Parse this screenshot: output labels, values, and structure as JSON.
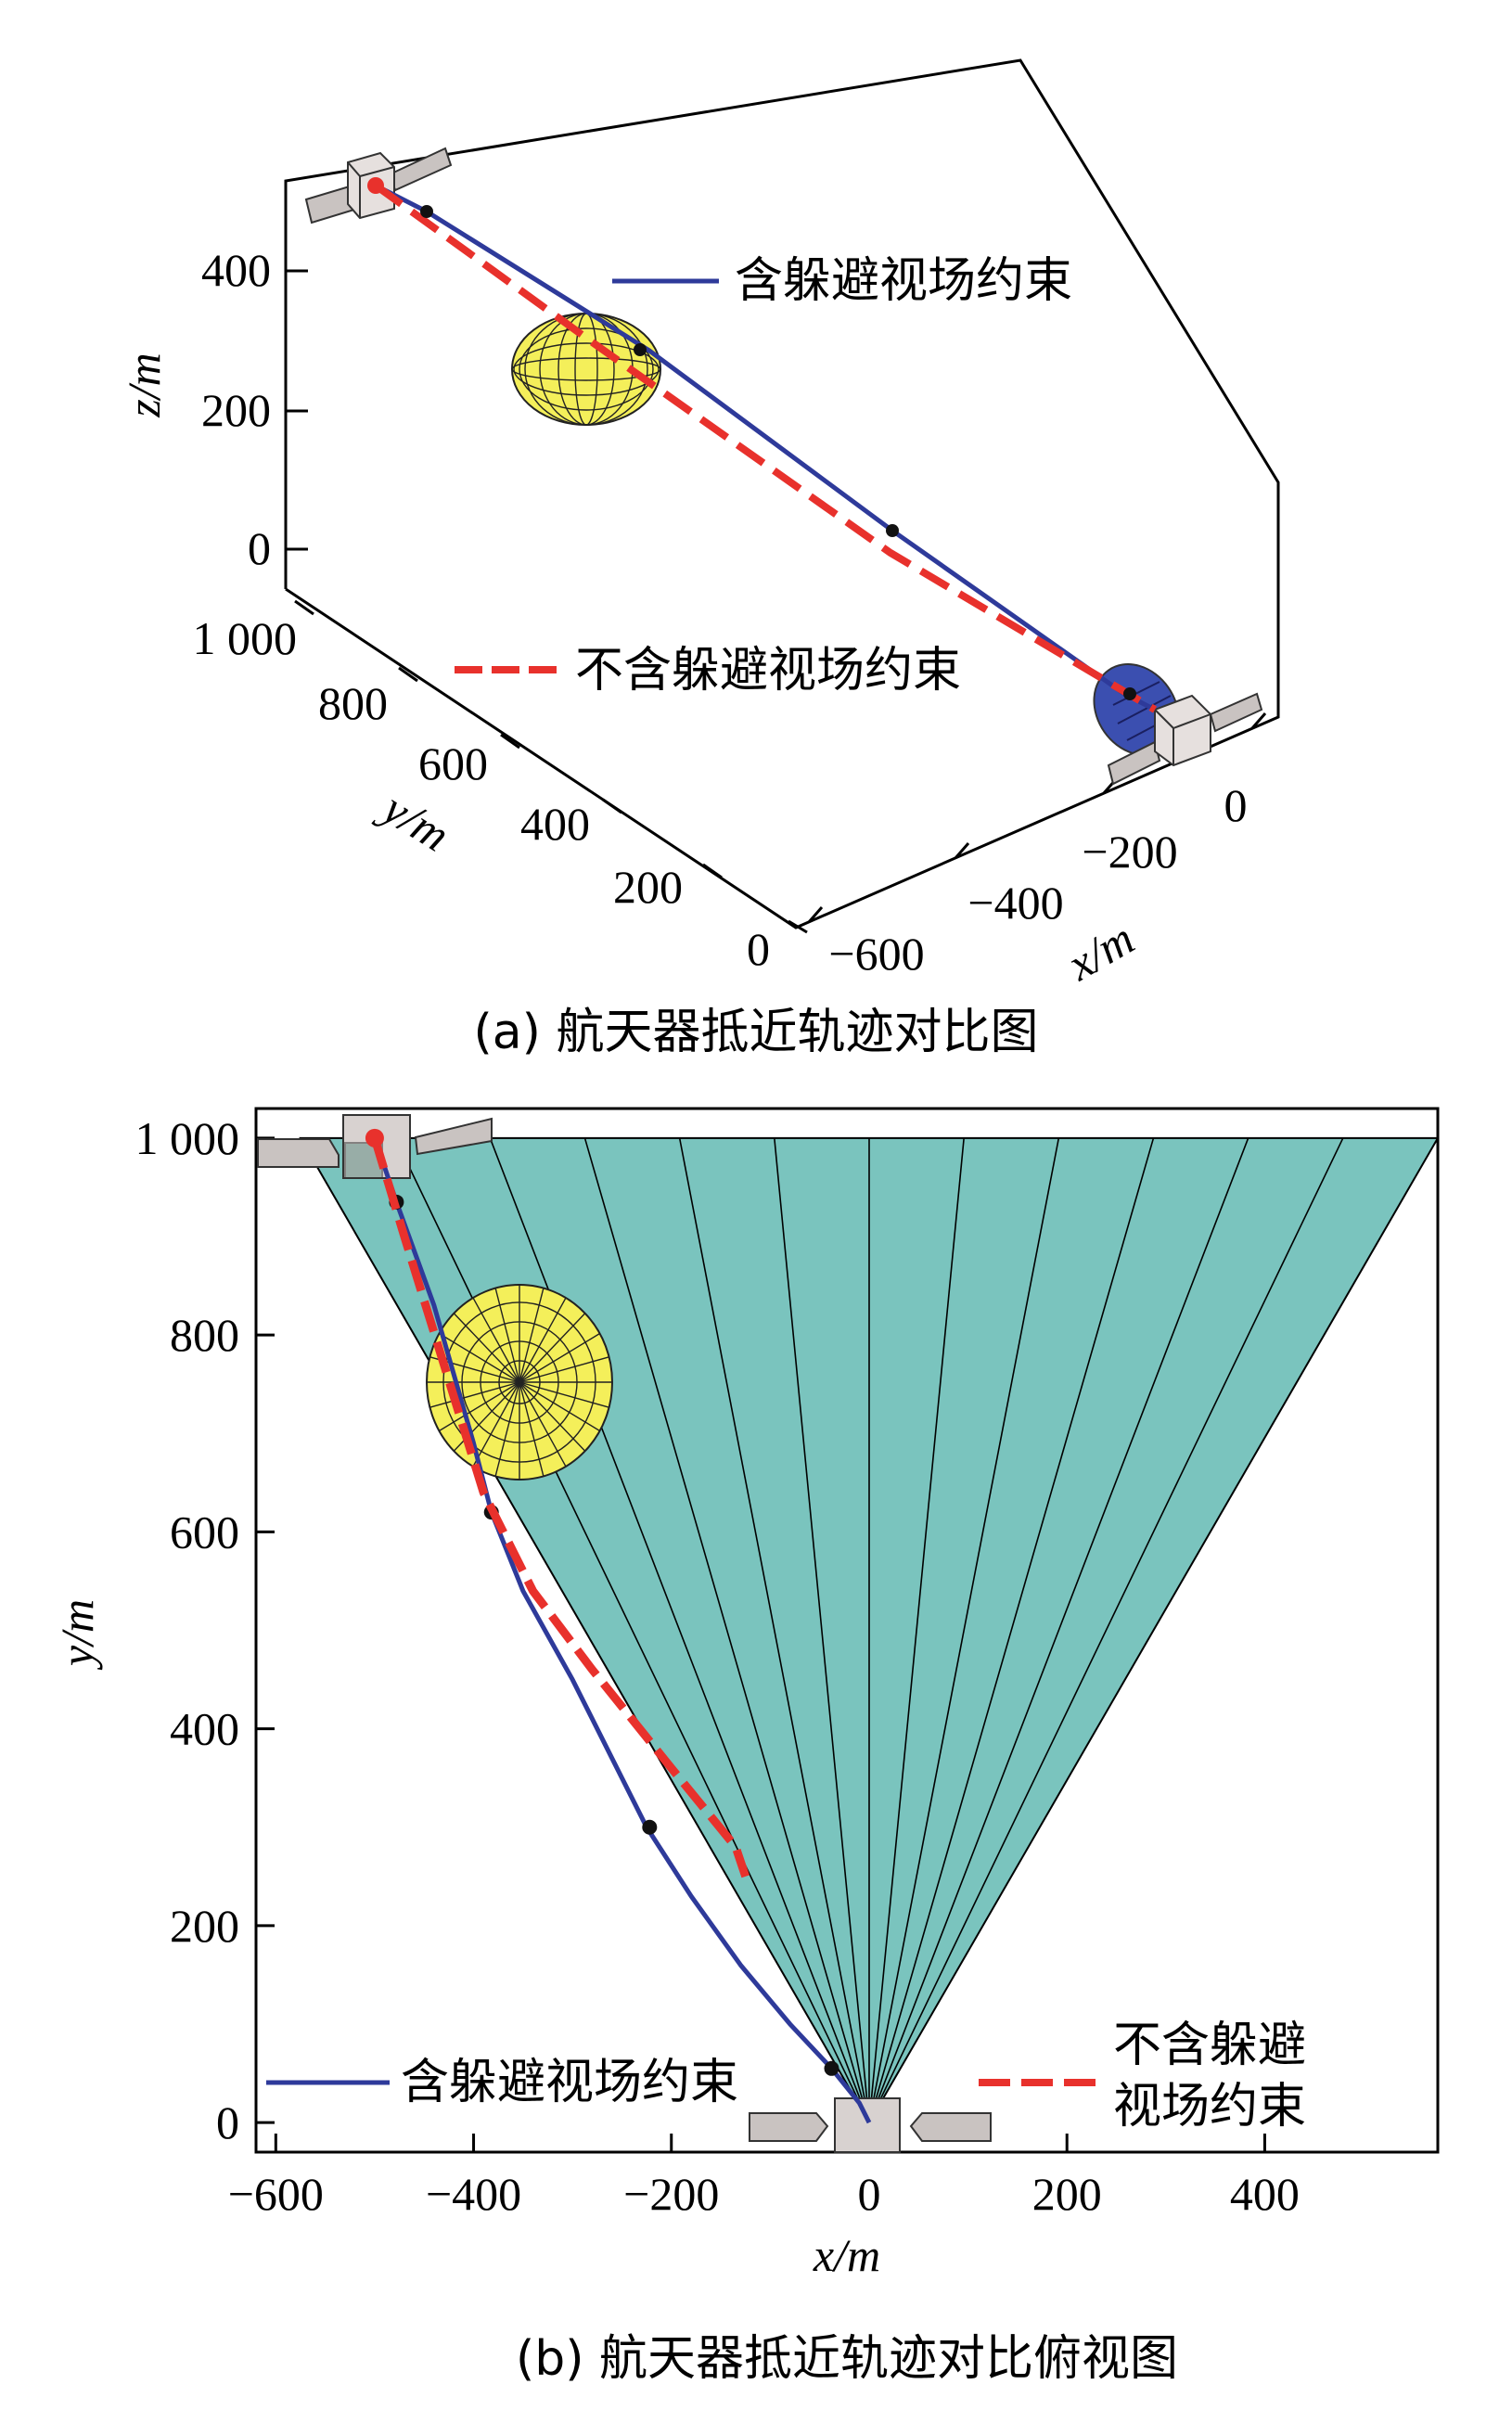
{
  "chart_data": [
    {
      "type": "line",
      "panel_caption": "(a) 航天器抵近轨迹对比图",
      "xlabel": "x/m",
      "ylabel": "y/m",
      "zlabel": "z/m",
      "x_ticks": [
        "−600",
        "−400",
        "−200",
        "0"
      ],
      "y_ticks": [
        "0",
        "200",
        "400",
        "600",
        "800",
        "1 000"
      ],
      "z_ticks": [
        "0",
        "200",
        "400"
      ],
      "series": [
        {
          "name": "含躲避视场约束",
          "color": "#2e3a9a",
          "style": "solid",
          "points": [
            [
              -500,
              1000,
              500
            ],
            [
              -470,
              930,
              450
            ],
            [
              -390,
              800,
              320
            ],
            [
              -250,
              540,
              160
            ],
            [
              -60,
              80,
              20
            ],
            [
              0,
              0,
              0
            ]
          ]
        },
        {
          "name": "不含躲避视场约束",
          "color": "#e8312c",
          "style": "dashed",
          "points": [
            [
              -500,
              1000,
              500
            ],
            [
              -250,
              500,
              250
            ],
            [
              0,
              0,
              0
            ]
          ]
        }
      ],
      "legend_entries": [
        "含躲避视场约束",
        "不含躲避视场约束"
      ]
    },
    {
      "type": "line",
      "panel_caption": "(b) 航天器抵近轨迹对比俯视图",
      "xlabel": "x/m",
      "ylabel": "y/m",
      "x_ticks": [
        "−600",
        "−400",
        "−200",
        "0",
        "200",
        "400"
      ],
      "y_ticks": [
        "0",
        "200",
        "400",
        "600",
        "800",
        "1 000"
      ],
      "xlim": [
        -620,
        575
      ],
      "ylim": [
        -30,
        1030
      ],
      "field_of_view": {
        "color": "#7ac4be",
        "apex": [
          0,
          0
        ],
        "top_y": 1000,
        "top_x_range": [
          -575,
          575
        ]
      },
      "series": [
        {
          "name": "含躲避视场约束",
          "color": "#2e3a9a",
          "style": "solid",
          "x": [
            -500,
            -478,
            -440,
            -400,
            -382,
            -350,
            -300,
            -260,
            -225,
            -180,
            -130,
            -80,
            -38,
            -10,
            0
          ],
          "y": [
            1000,
            935,
            830,
            690,
            620,
            540,
            450,
            370,
            300,
            230,
            160,
            100,
            55,
            20,
            0
          ],
          "markers": [
            [
              -478,
              935
            ],
            [
              -382,
              620
            ],
            [
              -222,
              300
            ],
            [
              -38,
              55
            ]
          ]
        },
        {
          "name": "不含躲避视场约束",
          "color": "#e8312c",
          "style": "dashed",
          "x": [
            -500,
            -470,
            -430,
            -390,
            -340,
            -280,
            -200,
            -135,
            -125
          ],
          "y": [
            1000,
            900,
            770,
            640,
            540,
            460,
            360,
            280,
            250
          ]
        }
      ],
      "legend_entries": [
        "含躲避视场约束",
        "不含躲避视场约束"
      ],
      "legend_dashed_text_lines": [
        "不含躲避",
        "视场约束"
      ]
    }
  ]
}
